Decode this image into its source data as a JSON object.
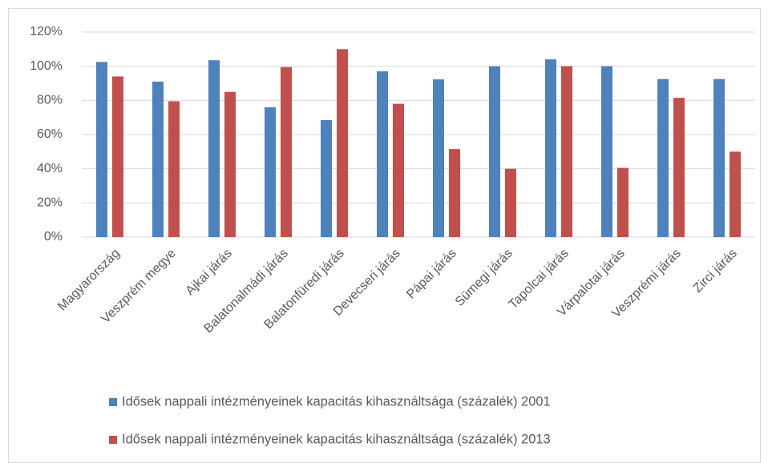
{
  "chart_data": {
    "type": "bar",
    "categories": [
      "Magyarország",
      "Veszprém megye",
      "Ajkai járás",
      "Balatonalmádi járás",
      "Balatonfüredi járás",
      "Devecseri járás",
      "Pápai járás",
      "Sümegi járás",
      "Tapolcai járás",
      "Várpalotai járás",
      "Veszprémi járás",
      "Zirci járás"
    ],
    "series": [
      {
        "name": "Idősek nappali intézményeinek kapacitás kihasználtsága (százalék) 2001",
        "color": "#4f81bd",
        "values": [
          102.5,
          91,
          103.5,
          76,
          68.5,
          97,
          92.3,
          100,
          104,
          100,
          92.5,
          92.5
        ]
      },
      {
        "name": "Idősek nappali intézményeinek kapacitás kihasználtsága (százalék) 2013",
        "color": "#c0504d",
        "values": [
          94,
          79.5,
          85,
          99.5,
          110,
          78,
          51.5,
          40,
          100,
          40.5,
          81.5,
          50
        ]
      }
    ],
    "ylim": [
      0,
      120
    ],
    "yticks": [
      {
        "value": 0,
        "label": "0%"
      },
      {
        "value": 20,
        "label": "20%"
      },
      {
        "value": 40,
        "label": "40%"
      },
      {
        "value": 60,
        "label": "60%"
      },
      {
        "value": 80,
        "label": "80%"
      },
      {
        "value": 100,
        "label": "100%"
      },
      {
        "value": 120,
        "label": "120%"
      }
    ],
    "grid": true,
    "legend": "bottom"
  }
}
